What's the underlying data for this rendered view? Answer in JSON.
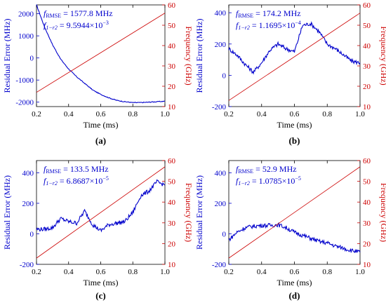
{
  "chart_data": [
    {
      "type": "line",
      "panel_label": "(a)",
      "xlabel": "Time (ms)",
      "ylabel_left": "Residual Error (MHz)",
      "ylabel_right": "Frequency (GHz)",
      "xlim": [
        0.2,
        1.0
      ],
      "x_ticks": [
        "0.2",
        "0.4",
        "0.6",
        "0.8",
        "1.0"
      ],
      "ylim_left": [
        -2200,
        2400
      ],
      "y_ticks_left": [
        "-2000",
        "-1000",
        "0",
        "1000",
        "2000"
      ],
      "ylim_right": [
        10,
        60
      ],
      "y_ticks_right": [
        "10",
        "20",
        "30",
        "40",
        "50",
        "60"
      ],
      "annotation_1": "= 1577.8 MHz",
      "annotation_2": "= 9.5944×10",
      "annotation_2_exp": "−3",
      "series": [
        {
          "color": "#0000cc",
          "x": [
            0.2,
            0.25,
            0.3,
            0.35,
            0.4,
            0.45,
            0.5,
            0.55,
            0.6,
            0.65,
            0.7,
            0.75,
            0.8,
            0.85,
            0.9,
            0.95,
            1.0
          ],
          "y": [
            2400,
            1400,
            600,
            -50,
            -500,
            -850,
            -1150,
            -1450,
            -1650,
            -1800,
            -1920,
            -1980,
            -2020,
            -2020,
            -2000,
            -1980,
            -1960
          ]
        },
        {
          "color": "#cc0000",
          "x": [
            0.2,
            1.0
          ],
          "y": [
            17,
            56
          ]
        }
      ]
    },
    {
      "type": "line",
      "panel_label": "(b)",
      "xlabel": "Time (ms)",
      "ylabel_left": "Residual Error (MHz)",
      "ylabel_right": "Frequency (GHz)",
      "xlim": [
        0.2,
        1.0
      ],
      "x_ticks": [
        "0.2",
        "0.4",
        "0.6",
        "0.8",
        "1.0"
      ],
      "ylim_left": [
        -200,
        450
      ],
      "y_ticks_left": [
        "-200",
        "0",
        "200",
        "400"
      ],
      "ylim_right": [
        10,
        60
      ],
      "y_ticks_right": [
        "10",
        "20",
        "30",
        "40",
        "50",
        "60"
      ],
      "annotation_1": "= 174.2 MHz",
      "annotation_2": "= 1.1695×10",
      "annotation_2_exp": "−4",
      "series": [
        {
          "color": "#0000cc",
          "x": [
            0.2,
            0.25,
            0.3,
            0.35,
            0.4,
            0.45,
            0.5,
            0.55,
            0.6,
            0.65,
            0.7,
            0.75,
            0.8,
            0.85,
            0.9,
            0.95,
            1.0
          ],
          "y": [
            170,
            130,
            70,
            20,
            80,
            160,
            200,
            170,
            150,
            320,
            330,
            280,
            200,
            170,
            130,
            90,
            80
          ]
        },
        {
          "color": "#cc0000",
          "x": [
            0.2,
            1.0
          ],
          "y": [
            13,
            56
          ]
        }
      ]
    },
    {
      "type": "line",
      "panel_label": "(c)",
      "xlabel": "Time (ms)",
      "ylabel_left": "Residual Error (MHz)",
      "ylabel_right": "Frequency (GHz)",
      "xlim": [
        0.2,
        1.0
      ],
      "x_ticks": [
        "0.2",
        "0.4",
        "0.6",
        "0.8",
        "1.0"
      ],
      "ylim_left": [
        -200,
        480
      ],
      "y_ticks_left": [
        "-200",
        "0",
        "200",
        "400"
      ],
      "ylim_right": [
        10,
        60
      ],
      "y_ticks_right": [
        "10",
        "20",
        "30",
        "40",
        "50",
        "60"
      ],
      "annotation_1": "= 133.5 MHz",
      "annotation_2": "= 6.8687×10",
      "annotation_2_exp": "−5",
      "series": [
        {
          "color": "#0000cc",
          "x": [
            0.2,
            0.25,
            0.3,
            0.35,
            0.4,
            0.45,
            0.5,
            0.55,
            0.6,
            0.65,
            0.7,
            0.75,
            0.8,
            0.85,
            0.9,
            0.95,
            1.0
          ],
          "y": [
            30,
            30,
            40,
            100,
            80,
            70,
            150,
            60,
            20,
            60,
            70,
            80,
            140,
            250,
            280,
            340,
            320
          ]
        },
        {
          "color": "#cc0000",
          "x": [
            0.2,
            1.0
          ],
          "y": [
            13,
            57
          ]
        }
      ]
    },
    {
      "type": "line",
      "panel_label": "(d)",
      "xlabel": "Time (ms)",
      "ylabel_left": "Residual Error (MHz)",
      "ylabel_right": "Frequency (GHz)",
      "xlim": [
        0.2,
        1.0
      ],
      "x_ticks": [
        "0.2",
        "0.4",
        "0.6",
        "0.8",
        "1.0"
      ],
      "ylim_left": [
        -200,
        480
      ],
      "y_ticks_left": [
        "-200",
        "0",
        "200",
        "400"
      ],
      "ylim_right": [
        10,
        60
      ],
      "y_ticks_right": [
        "10",
        "20",
        "30",
        "40",
        "50",
        "60"
      ],
      "annotation_1": "= 52.9 MHz",
      "annotation_2": "= 1.0785×10",
      "annotation_2_exp": "−5",
      "series": [
        {
          "color": "#0000cc",
          "x": [
            0.2,
            0.25,
            0.3,
            0.35,
            0.4,
            0.45,
            0.5,
            0.55,
            0.6,
            0.65,
            0.7,
            0.75,
            0.8,
            0.85,
            0.9,
            0.95,
            1.0
          ],
          "y": [
            -40,
            10,
            40,
            50,
            55,
            55,
            60,
            40,
            10,
            -10,
            -30,
            -50,
            -60,
            -80,
            -95,
            -110,
            -120
          ]
        },
        {
          "color": "#cc0000",
          "x": [
            0.2,
            1.0
          ],
          "y": [
            13,
            57
          ]
        }
      ]
    }
  ]
}
